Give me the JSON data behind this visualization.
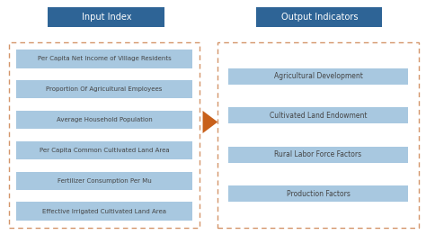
{
  "input_title": "Input Index",
  "output_title": "Output Indicators",
  "input_items": [
    "Per Capita Net Income of Village Residents",
    "Proportion Of Agricultural Employees",
    "Average Household Population",
    "Per Capita Common Cultivated Land Area",
    "Fertilizer Consumption Per Mu",
    "Effective Irrigated Cultivated Land Area"
  ],
  "output_items": [
    "Agricultural Development",
    "Cultivated Land Endowment",
    "Rural Labor Force Factors",
    "Production Factors"
  ],
  "header_bg_color": "#2e6496",
  "header_text_color": "#ffffff",
  "item_bg_color": "#a8c8e0",
  "item_text_color": "#444444",
  "box_border_color": "#d4956a",
  "arrow_color": "#c8601a",
  "fig_bg_color": "#ffffff"
}
